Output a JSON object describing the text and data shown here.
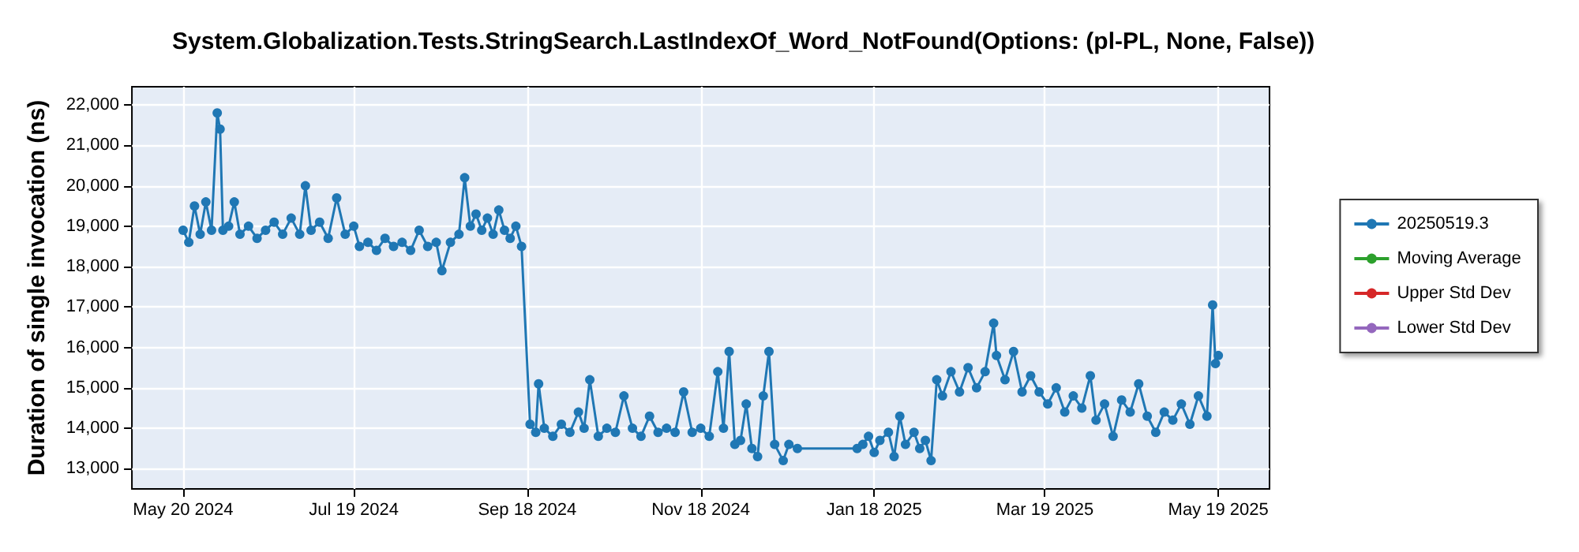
{
  "chart_data": {
    "type": "line",
    "title": "System.Globalization.Tests.StringSearch.LastIndexOf_Word_NotFound(Options: (pl-PL, None, False))",
    "ylabel": "Duration of single invocation (ns)",
    "x": [
      "2024-05-20",
      "2024-05-22",
      "2024-05-24",
      "2024-05-26",
      "2024-05-28",
      "2024-05-30",
      "2024-06-01",
      "2024-06-02",
      "2024-06-03",
      "2024-06-05",
      "2024-06-07",
      "2024-06-09",
      "2024-06-12",
      "2024-06-15",
      "2024-06-18",
      "2024-06-21",
      "2024-06-24",
      "2024-06-27",
      "2024-06-30",
      "2024-07-02",
      "2024-07-04",
      "2024-07-07",
      "2024-07-10",
      "2024-07-13",
      "2024-07-16",
      "2024-07-19",
      "2024-07-21",
      "2024-07-24",
      "2024-07-27",
      "2024-07-30",
      "2024-08-02",
      "2024-08-05",
      "2024-08-08",
      "2024-08-11",
      "2024-08-14",
      "2024-08-17",
      "2024-08-19",
      "2024-08-22",
      "2024-08-25",
      "2024-08-27",
      "2024-08-29",
      "2024-08-31",
      "2024-09-02",
      "2024-09-04",
      "2024-09-06",
      "2024-09-08",
      "2024-09-10",
      "2024-09-12",
      "2024-09-14",
      "2024-09-16",
      "2024-09-19",
      "2024-09-21",
      "2024-09-22",
      "2024-09-24",
      "2024-09-27",
      "2024-09-30",
      "2024-10-03",
      "2024-10-06",
      "2024-10-08",
      "2024-10-10",
      "2024-10-13",
      "2024-10-16",
      "2024-10-19",
      "2024-10-22",
      "2024-10-25",
      "2024-10-28",
      "2024-10-31",
      "2024-11-03",
      "2024-11-06",
      "2024-11-09",
      "2024-11-12",
      "2024-11-15",
      "2024-11-18",
      "2024-11-21",
      "2024-11-24",
      "2024-11-26",
      "2024-11-28",
      "2024-11-30",
      "2024-12-02",
      "2024-12-04",
      "2024-12-06",
      "2024-12-08",
      "2024-12-10",
      "2024-12-12",
      "2024-12-14",
      "2024-12-17",
      "2024-12-19",
      "2024-12-22",
      "2025-01-12",
      "2025-01-14",
      "2025-01-16",
      "2025-01-18",
      "2025-01-20",
      "2025-01-23",
      "2025-01-25",
      "2025-01-27",
      "2025-01-29",
      "2025-02-01",
      "2025-02-03",
      "2025-02-05",
      "2025-02-07",
      "2025-02-09",
      "2025-02-11",
      "2025-02-14",
      "2025-02-17",
      "2025-02-20",
      "2025-02-23",
      "2025-02-26",
      "2025-03-01",
      "2025-03-02",
      "2025-03-05",
      "2025-03-08",
      "2025-03-11",
      "2025-03-14",
      "2025-03-17",
      "2025-03-20",
      "2025-03-23",
      "2025-03-26",
      "2025-03-29",
      "2025-04-01",
      "2025-04-04",
      "2025-04-06",
      "2025-04-09",
      "2025-04-12",
      "2025-04-15",
      "2025-04-18",
      "2025-04-21",
      "2025-04-24",
      "2025-04-27",
      "2025-04-30",
      "2025-05-03",
      "2025-05-06",
      "2025-05-09",
      "2025-05-12",
      "2025-05-15",
      "2025-05-17",
      "2025-05-18",
      "2025-05-19"
    ],
    "series": [
      {
        "name": "20250519.3",
        "color": "#1f77b4",
        "values": [
          18900,
          18600,
          19500,
          18800,
          19600,
          18900,
          21800,
          21400,
          18900,
          19000,
          19600,
          18800,
          19000,
          18700,
          18900,
          19100,
          18800,
          19200,
          18800,
          20000,
          18900,
          19100,
          18700,
          19700,
          18800,
          19000,
          18500,
          18600,
          18400,
          18700,
          18500,
          18600,
          18400,
          18900,
          18500,
          18600,
          17900,
          18600,
          18800,
          20200,
          19000,
          19300,
          18900,
          19200,
          18800,
          19400,
          18900,
          18700,
          19000,
          18500,
          14100,
          13900,
          15100,
          14000,
          13800,
          14100,
          13900,
          14400,
          14000,
          15200,
          13800,
          14000,
          13900,
          14800,
          14000,
          13800,
          14300,
          13900,
          14000,
          13900,
          14900,
          13900,
          14000,
          13800,
          15400,
          14000,
          15900,
          13600,
          13700,
          14600,
          13500,
          13300,
          14800,
          15900,
          13600,
          13200,
          13600,
          13500,
          13500,
          13600,
          13800,
          13400,
          13700,
          13900,
          13300,
          14300,
          13600,
          13900,
          13500,
          13700,
          13200,
          15200,
          14800,
          15400,
          14900,
          15500,
          15000,
          15400,
          16600,
          15800,
          15200,
          15900,
          14900,
          15300,
          14900,
          14600,
          15000,
          14400,
          14800,
          14500,
          15300,
          14200,
          14600,
          13800,
          14700,
          14400,
          15100,
          14300,
          13900,
          14400,
          14200,
          14600,
          14100,
          14800,
          14300,
          17050,
          15600,
          15800
        ]
      },
      {
        "name": "Moving Average",
        "color": "#2ca02c",
        "values": [
          null,
          null,
          null,
          null,
          null,
          null,
          null,
          null,
          null,
          null,
          null,
          null,
          null,
          null,
          null,
          null,
          null,
          null,
          null,
          null,
          null,
          null,
          null,
          null,
          null,
          null,
          null,
          null,
          null,
          null,
          null,
          null,
          null,
          null,
          null,
          null,
          null,
          null,
          null,
          null,
          null,
          null,
          null,
          null,
          null,
          null,
          null,
          null,
          null,
          null,
          null,
          null,
          null,
          null,
          null,
          null,
          null,
          null,
          null,
          null,
          null,
          null,
          null,
          null,
          null,
          null,
          null,
          null,
          null,
          null,
          null,
          null,
          null,
          null,
          null,
          null,
          null,
          null,
          null,
          null,
          null,
          null,
          null,
          null,
          null,
          null,
          null,
          null,
          null,
          null,
          null,
          null,
          null,
          null,
          null,
          null,
          null,
          null,
          null,
          null,
          null,
          null,
          null,
          null,
          null,
          null,
          null,
          null,
          null,
          null,
          null,
          null,
          null,
          null,
          null,
          null,
          null,
          null,
          null,
          null,
          null,
          null,
          null,
          null,
          null,
          null,
          null,
          null,
          null,
          null,
          null,
          null,
          null,
          null,
          null,
          null,
          null,
          null
        ]
      },
      {
        "name": "Upper Std Dev",
        "color": "#d62728",
        "values": [
          null,
          null,
          null,
          null,
          null,
          null,
          null,
          null,
          null,
          null,
          null,
          null,
          null,
          null,
          null,
          null,
          null,
          null,
          null,
          null,
          null,
          null,
          null,
          null,
          null,
          null,
          null,
          null,
          null,
          null,
          null,
          null,
          null,
          null,
          null,
          null,
          null,
          null,
          null,
          null,
          null,
          null,
          null,
          null,
          null,
          null,
          null,
          null,
          null,
          null,
          null,
          null,
          null,
          null,
          null,
          null,
          null,
          null,
          null,
          null,
          null,
          null,
          null,
          null,
          null,
          null,
          null,
          null,
          null,
          null,
          null,
          null,
          null,
          null,
          null,
          null,
          null,
          null,
          null,
          null,
          null,
          null,
          null,
          null,
          null,
          null,
          null,
          null,
          null,
          null,
          null,
          null,
          null,
          null,
          null,
          null,
          null,
          null,
          null,
          null,
          null,
          null,
          null,
          null,
          null,
          null,
          null,
          null,
          null,
          null,
          null,
          null,
          null,
          null,
          null,
          null,
          null,
          null,
          null,
          null,
          null,
          null,
          null,
          null,
          null,
          null,
          null,
          null,
          null,
          null,
          null,
          null,
          null,
          null,
          null,
          null,
          null,
          null
        ]
      },
      {
        "name": "Lower Std Dev",
        "color": "#9467bd",
        "values": [
          null,
          null,
          null,
          null,
          null,
          null,
          null,
          null,
          null,
          null,
          null,
          null,
          null,
          null,
          null,
          null,
          null,
          null,
          null,
          null,
          null,
          null,
          null,
          null,
          null,
          null,
          null,
          null,
          null,
          null,
          null,
          null,
          null,
          null,
          null,
          null,
          null,
          null,
          null,
          null,
          null,
          null,
          null,
          null,
          null,
          null,
          null,
          null,
          null,
          null,
          null,
          null,
          null,
          null,
          null,
          null,
          null,
          null,
          null,
          null,
          null,
          null,
          null,
          null,
          null,
          null,
          null,
          null,
          null,
          null,
          null,
          null,
          null,
          null,
          null,
          null,
          null,
          null,
          null,
          null,
          null,
          null,
          null,
          null,
          null,
          null,
          null,
          null,
          null,
          null,
          null,
          null,
          null,
          null,
          null,
          null,
          null,
          null,
          null,
          null,
          null,
          null,
          null,
          null,
          null,
          null,
          null,
          null,
          null,
          null,
          null,
          null,
          null,
          null,
          null,
          null,
          null,
          null,
          null,
          null,
          null,
          null,
          null,
          null,
          null,
          null,
          null,
          null,
          null,
          null,
          null,
          null,
          null,
          null,
          null,
          null,
          null,
          null
        ]
      }
    ],
    "xlim": [
      "2024-05-02",
      "2025-06-06"
    ],
    "xticks": [
      {
        "value": "2024-05-20",
        "label": "May 20 2024"
      },
      {
        "value": "2024-07-19",
        "label": "Jul 19 2024"
      },
      {
        "value": "2024-09-18",
        "label": "Sep 18 2024"
      },
      {
        "value": "2024-11-18",
        "label": "Nov 18 2024"
      },
      {
        "value": "2025-01-18",
        "label": "Jan 18 2025"
      },
      {
        "value": "2025-03-19",
        "label": "Mar 19 2025"
      },
      {
        "value": "2025-05-19",
        "label": "May 19 2025"
      }
    ],
    "ylim": [
      12500,
      22450
    ],
    "yticks": [
      {
        "value": 13000,
        "label": "13,000"
      },
      {
        "value": 14000,
        "label": "14,000"
      },
      {
        "value": 15000,
        "label": "15,000"
      },
      {
        "value": 16000,
        "label": "16,000"
      },
      {
        "value": 17000,
        "label": "17,000"
      },
      {
        "value": 18000,
        "label": "18,000"
      },
      {
        "value": 19000,
        "label": "19,000"
      },
      {
        "value": 20000,
        "label": "20,000"
      },
      {
        "value": 21000,
        "label": "21,000"
      },
      {
        "value": 22000,
        "label": "22,000"
      }
    ],
    "grid": true,
    "legend": "right",
    "marker": "circle",
    "line_style": "solid"
  }
}
